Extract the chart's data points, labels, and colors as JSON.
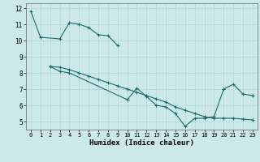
{
  "title": "",
  "xlabel": "Humidex (Indice chaleur)",
  "bg_color": "#cce8e8",
  "line_color": "#1a6b6b",
  "grid_color": "#b8d8d8",
  "xlim": [
    -0.5,
    23.5
  ],
  "ylim": [
    4.5,
    12.3
  ],
  "yticks": [
    5,
    6,
    7,
    8,
    9,
    10,
    11,
    12
  ],
  "xticks": [
    0,
    1,
    2,
    3,
    4,
    5,
    6,
    7,
    8,
    9,
    10,
    11,
    12,
    13,
    14,
    15,
    16,
    17,
    18,
    19,
    20,
    21,
    22,
    23
  ],
  "line1_x": [
    0,
    1,
    3,
    4,
    5,
    6,
    7,
    8,
    9
  ],
  "line1_y": [
    11.8,
    10.2,
    10.1,
    11.1,
    11.0,
    10.8,
    10.35,
    10.3,
    9.7
  ],
  "line2_x": [
    2,
    3,
    4,
    5,
    6,
    7,
    8,
    9,
    10,
    11,
    12,
    13,
    14,
    15,
    16,
    17,
    18,
    19,
    20,
    21,
    22,
    23
  ],
  "line2_y": [
    8.4,
    8.35,
    8.2,
    8.0,
    7.8,
    7.6,
    7.4,
    7.2,
    7.0,
    6.8,
    6.6,
    6.4,
    6.2,
    5.9,
    5.7,
    5.5,
    5.3,
    5.2,
    5.2,
    5.2,
    5.15,
    5.1
  ],
  "line3_x": [
    2,
    3,
    4,
    10,
    11,
    12,
    13,
    14,
    15,
    16,
    17,
    18,
    19,
    20,
    21,
    22,
    23
  ],
  "line3_y": [
    8.4,
    8.1,
    8.0,
    6.35,
    7.05,
    6.55,
    6.0,
    5.9,
    5.5,
    4.7,
    5.2,
    5.2,
    5.3,
    7.0,
    7.3,
    6.7,
    6.6
  ]
}
